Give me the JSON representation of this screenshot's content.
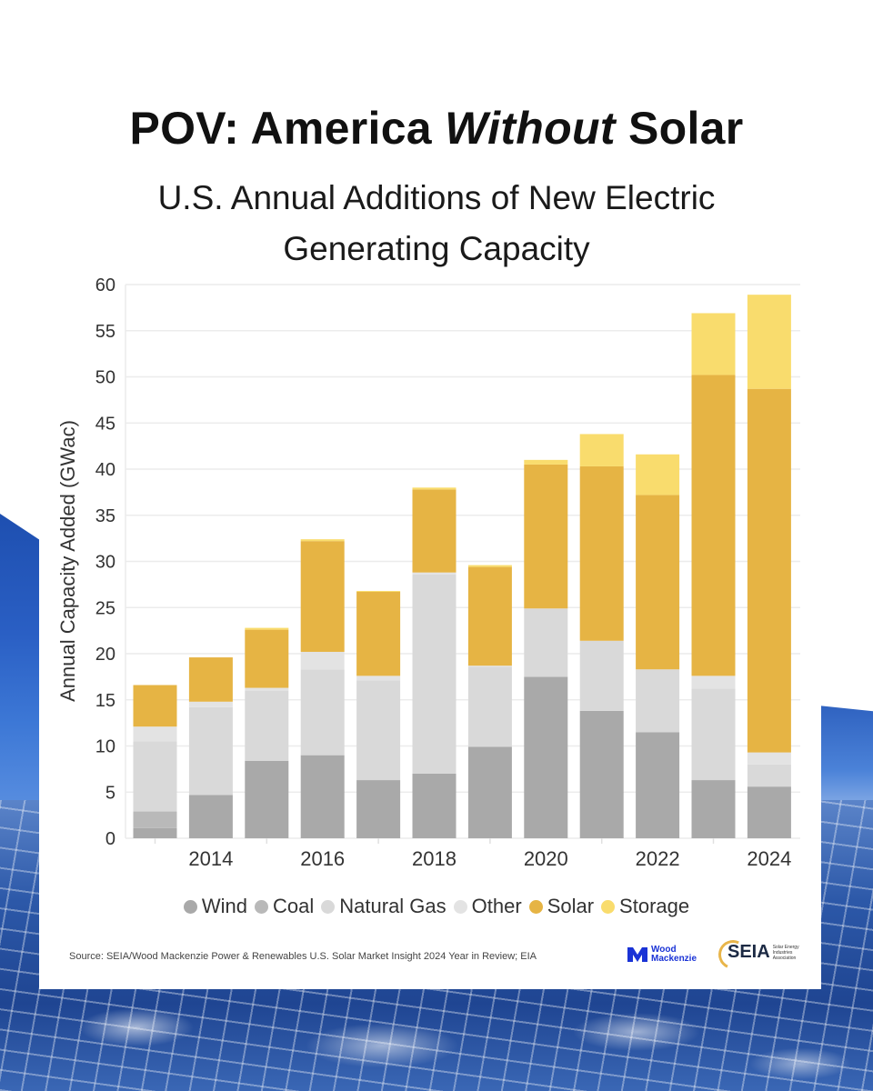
{
  "header": {
    "title_prefix": "POV: America ",
    "title_emphasis": "Without",
    "title_suffix": " Solar",
    "subtitle_line1": "U.S. Annual Additions of New Electric",
    "subtitle_line2": "Generating Capacity"
  },
  "chart_data": {
    "type": "bar",
    "stacked": true,
    "title": "U.S. Annual Additions of New Electric Generating Capacity",
    "xlabel": "",
    "ylabel": "Annual Capacity Added (GWac)",
    "ylim": [
      0,
      60
    ],
    "yticks": [
      0,
      5,
      10,
      15,
      20,
      25,
      30,
      35,
      40,
      45,
      50,
      55,
      60
    ],
    "grid": true,
    "legend_position": "bottom",
    "categories": [
      "2013",
      "2014",
      "2015",
      "2016",
      "2017",
      "2018",
      "2019",
      "2020",
      "2021",
      "2022",
      "2023",
      "2024"
    ],
    "xtick_labels": [
      "",
      "2014",
      "",
      "2016",
      "",
      "2018",
      "",
      "2020",
      "",
      "2022",
      "",
      "2024"
    ],
    "series": [
      {
        "name": "Wind",
        "color": "#a9a9a9",
        "values": [
          1.1,
          4.7,
          8.4,
          9.0,
          6.3,
          7.0,
          9.9,
          17.5,
          13.8,
          11.5,
          6.3,
          5.6
        ]
      },
      {
        "name": "Coal",
        "color": "#b9b9b9",
        "values": [
          1.8,
          0,
          0,
          0,
          0,
          0,
          0,
          0,
          0,
          0,
          0,
          0
        ]
      },
      {
        "name": "Natural Gas",
        "color": "#d9d9d9",
        "values": [
          7.6,
          9.5,
          7.6,
          9.3,
          10.8,
          21.6,
          8.7,
          7.4,
          7.6,
          6.8,
          9.9,
          2.4
        ]
      },
      {
        "name": "Other",
        "color": "#e3e3e3",
        "values": [
          1.6,
          0.6,
          0.3,
          1.9,
          0.5,
          0.2,
          0.1,
          0.0,
          0.0,
          0.0,
          1.4,
          1.3
        ]
      },
      {
        "name": "Solar",
        "color": "#e6b444",
        "values": [
          4.5,
          4.8,
          6.3,
          12.0,
          9.1,
          9.0,
          10.7,
          15.6,
          18.9,
          18.9,
          32.6,
          39.4
        ]
      },
      {
        "name": "Storage",
        "color": "#f9dc6d",
        "values": [
          0,
          0,
          0.2,
          0.2,
          0.1,
          0.2,
          0.2,
          0.5,
          3.5,
          4.4,
          6.7,
          10.2
        ]
      }
    ]
  },
  "legend": {
    "items": [
      {
        "label": "Wind",
        "color": "#a9a9a9"
      },
      {
        "label": "Coal",
        "color": "#b9b9b9"
      },
      {
        "label": "Natural Gas",
        "color": "#d9d9d9"
      },
      {
        "label": "Other",
        "color": "#e3e3e3"
      },
      {
        "label": "Solar",
        "color": "#e6b444"
      },
      {
        "label": "Storage",
        "color": "#f9dc6d"
      }
    ]
  },
  "footer": {
    "source": "Source: SEIA/Wood Mackenzie Power & Renewables U.S. Solar Market Insight 2024 Year in Review; EIA",
    "logo1_line1": "Wood",
    "logo1_line2": "Mackenzie",
    "logo2_name": "SEIA",
    "logo2_small": "Solar Energy Industries Association"
  }
}
